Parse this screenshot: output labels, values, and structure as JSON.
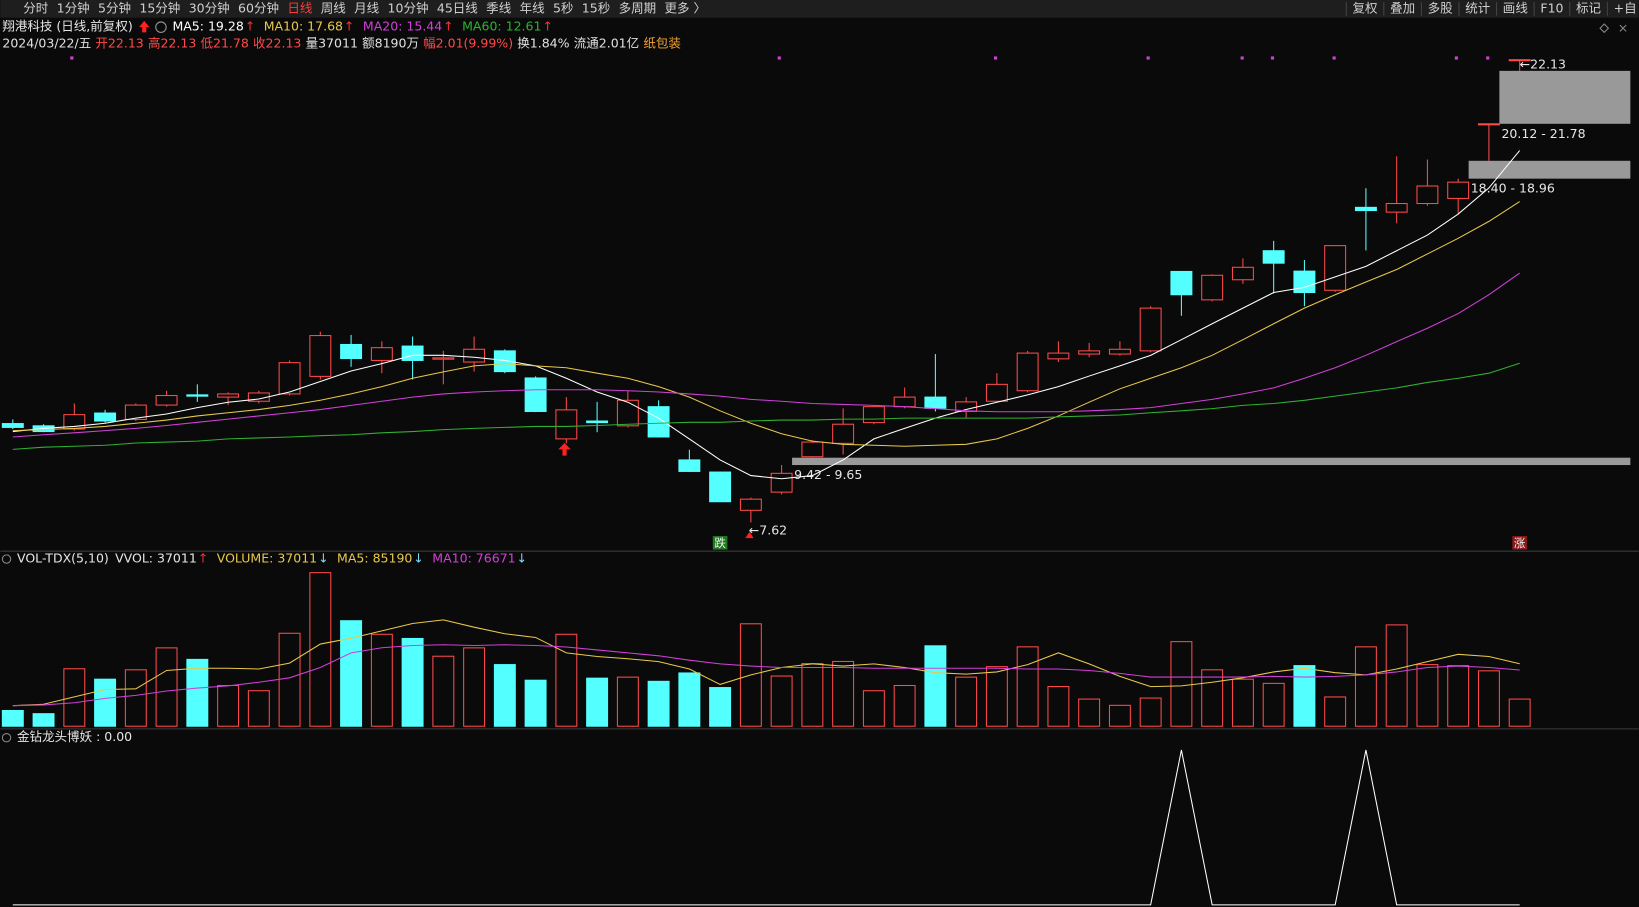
{
  "toolbar": {
    "periods": [
      "分时",
      "1分钟",
      "5分钟",
      "15分钟",
      "30分钟",
      "60分钟",
      "日线",
      "周线",
      "月线",
      "10分钟",
      "45日线",
      "季线",
      "年线",
      "5秒",
      "15秒",
      "多周期",
      "更多 〉"
    ],
    "active": "日线",
    "tools": [
      "复权",
      "叠加",
      "多股",
      "统计",
      "画线",
      "F10",
      "标记",
      "+自"
    ]
  },
  "header": {
    "stock": "翔港科技 (日线,前复权)",
    "quote": [
      {
        "text": "2024/03/22/五",
        "color": "#e0e0e0"
      },
      {
        "text": "开22.13",
        "color": "#ff4a4a"
      },
      {
        "text": "高22.13",
        "color": "#ff4a4a"
      },
      {
        "text": "低21.78",
        "color": "#ff4a4a"
      },
      {
        "text": "收22.13",
        "color": "#ff4a4a"
      },
      {
        "text": "量37011",
        "color": "#e0e0e0"
      },
      {
        "text": "额8190万",
        "color": "#e0e0e0"
      },
      {
        "text": "幅2.01(9.99%)",
        "color": "#ff4a4a"
      },
      {
        "text": "换1.84%",
        "color": "#e0e0e0"
      },
      {
        "text": "流通2.01亿",
        "color": "#e0e0e0"
      },
      {
        "text": "纸包装",
        "color": "#f0a030"
      }
    ]
  },
  "chart_data": [
    {
      "type": "candlestick",
      "up_color": "#ff4a4a",
      "down_color": "#54ffff",
      "ylim": [
        6.8,
        22.2
      ],
      "open": [
        10.72,
        10.65,
        10.55,
        11.05,
        10.85,
        11.3,
        11.62,
        11.55,
        11.42,
        11.65,
        12.2,
        13.2,
        12.7,
        13.15,
        12.74,
        12.65,
        13.0,
        12.15,
        10.24,
        10.8,
        10.65,
        11.25,
        9.58,
        9.2,
        8.0,
        8.57,
        9.68,
        10.1,
        10.75,
        11.25,
        11.55,
        11.1,
        11.42,
        11.75,
        12.75,
        12.9,
        12.9,
        13.0,
        15.49,
        14.6,
        15.23,
        16.14,
        15.5,
        14.9,
        17.5,
        17.35,
        17.62,
        17.78,
        20.12,
        22.13
      ],
      "high": [
        10.85,
        10.7,
        11.35,
        11.15,
        11.35,
        11.75,
        11.95,
        11.7,
        11.75,
        12.7,
        13.6,
        13.5,
        13.3,
        13.45,
        13.0,
        13.45,
        13.05,
        12.2,
        11.55,
        11.4,
        11.75,
        11.45,
        9.9,
        9.2,
        8.4,
        9.42,
        10.2,
        11.2,
        11.3,
        11.85,
        12.9,
        11.55,
        12.3,
        13.0,
        13.3,
        13.25,
        13.3,
        14.4,
        15.5,
        15.4,
        15.9,
        16.45,
        15.85,
        16.3,
        18.1,
        19.1,
        19.0,
        18.4,
        20.12,
        22.13
      ],
      "low": [
        10.55,
        10.45,
        10.5,
        10.75,
        10.8,
        11.25,
        11.4,
        11.3,
        11.35,
        11.6,
        12.1,
        12.5,
        12.3,
        12.1,
        11.95,
        12.35,
        12.3,
        11.08,
        10.1,
        10.45,
        10.6,
        10.3,
        9.2,
        8.27,
        7.62,
        8.5,
        9.65,
        9.75,
        10.7,
        11.2,
        11.1,
        10.9,
        11.4,
        11.7,
        12.65,
        12.8,
        12.85,
        12.95,
        14.1,
        14.55,
        15.1,
        14.8,
        14.4,
        14.85,
        16.15,
        17.0,
        17.55,
        17.3,
        18.96,
        21.78
      ],
      "close": [
        10.6,
        10.47,
        11.0,
        10.8,
        11.3,
        11.6,
        11.58,
        11.65,
        11.68,
        12.63,
        13.48,
        12.76,
        13.1,
        12.7,
        12.78,
        13.05,
        12.35,
        11.1,
        11.15,
        10.75,
        11.45,
        10.3,
        9.22,
        8.27,
        8.35,
        9.16,
        10.14,
        10.7,
        11.25,
        11.55,
        11.2,
        11.4,
        11.95,
        12.93,
        12.93,
        13.0,
        13.05,
        14.34,
        14.76,
        15.37,
        15.62,
        15.75,
        14.83,
        16.3,
        17.4,
        17.62,
        18.17,
        18.29,
        20.12,
        22.13
      ],
      "series": [
        {
          "name": "MA5: 19.28",
          "trend": "↑",
          "color": "#ffffff",
          "values": [
            10.47,
            10.57,
            10.63,
            10.73,
            10.89,
            11.02,
            11.22,
            11.39,
            11.49,
            11.71,
            12.04,
            12.37,
            12.6,
            12.86,
            12.86,
            12.8,
            12.7,
            12.53,
            12.14,
            11.71,
            11.39,
            10.89,
            10.24,
            9.58,
            9.09,
            8.99,
            9.09,
            9.58,
            10.24,
            10.57,
            10.89,
            11.16,
            11.39,
            11.62,
            11.88,
            12.21,
            12.53,
            12.86,
            13.35,
            13.85,
            14.34,
            14.83,
            14.99,
            15.32,
            15.65,
            16.14,
            16.63,
            17.29,
            18.11,
            19.28
          ]
        },
        {
          "name": "MA10: 17.68",
          "trend": "↑",
          "color": "#e8c84a",
          "values": [
            10.5,
            10.53,
            10.57,
            10.63,
            10.73,
            10.83,
            10.96,
            11.06,
            11.16,
            11.29,
            11.45,
            11.65,
            11.88,
            12.14,
            12.34,
            12.53,
            12.6,
            12.53,
            12.47,
            12.3,
            12.14,
            11.88,
            11.55,
            11.12,
            10.73,
            10.4,
            10.17,
            10.07,
            10.04,
            10.01,
            10.04,
            10.07,
            10.24,
            10.57,
            10.96,
            11.39,
            11.81,
            12.14,
            12.47,
            12.86,
            13.35,
            13.85,
            14.34,
            14.76,
            15.16,
            15.55,
            16.04,
            16.53,
            17.06,
            17.68
          ]
        },
        {
          "name": "MA20: 15.44",
          "trend": "↑",
          "color": "#d040d8",
          "values": [
            10.3,
            10.37,
            10.43,
            10.5,
            10.57,
            10.66,
            10.76,
            10.86,
            10.96,
            11.06,
            11.16,
            11.29,
            11.42,
            11.55,
            11.65,
            11.71,
            11.75,
            11.78,
            11.78,
            11.78,
            11.75,
            11.71,
            11.65,
            11.58,
            11.48,
            11.42,
            11.35,
            11.32,
            11.29,
            11.25,
            11.19,
            11.12,
            11.09,
            11.09,
            11.09,
            11.12,
            11.16,
            11.22,
            11.35,
            11.48,
            11.65,
            11.84,
            12.14,
            12.47,
            12.86,
            13.29,
            13.71,
            14.17,
            14.76,
            15.44
          ]
        },
        {
          "name": "MA60: 12.61",
          "trend": "↑",
          "color": "#30b030",
          "values": [
            9.91,
            9.98,
            10.01,
            10.04,
            10.11,
            10.14,
            10.17,
            10.24,
            10.27,
            10.3,
            10.34,
            10.37,
            10.43,
            10.47,
            10.53,
            10.57,
            10.6,
            10.63,
            10.63,
            10.66,
            10.7,
            10.73,
            10.76,
            10.76,
            10.8,
            10.83,
            10.83,
            10.86,
            10.86,
            10.89,
            10.89,
            10.89,
            10.89,
            10.89,
            10.93,
            10.96,
            10.99,
            11.06,
            11.12,
            11.19,
            11.29,
            11.35,
            11.45,
            11.58,
            11.71,
            11.84,
            12.01,
            12.14,
            12.3,
            12.61
          ]
        }
      ],
      "gaps": [
        {
          "label": "9.42 - 9.65",
          "low": 9.42,
          "high": 9.65
        },
        {
          "label": "18.40 - 18.96",
          "low": 18.4,
          "high": 18.96
        },
        {
          "label": "20.12 - 21.78",
          "low": 20.12,
          "high": 21.78
        }
      ],
      "low_label": "←7.62",
      "high_label": "←22.13",
      "signals": [
        {
          "text": "跌",
          "color": "#1f7a1f",
          "index": 23
        },
        {
          "text": "涨",
          "color": "#8a1a1a",
          "index": 49
        }
      ]
    },
    {
      "type": "bar",
      "title": "VOL-TDX(5,10)",
      "extra_label": "VVOL: 37011",
      "extra_trend": "↑",
      "ylim": [
        0,
        235000
      ],
      "series": [
        {
          "name": "VOLUME: 37011",
          "trend": "↓",
          "color": "#e8c84a",
          "values": [
            21400,
            17100,
            78300,
            64100,
            76900,
            106800,
            91100,
            55500,
            48400,
            126700,
            209300,
            143800,
            125300,
            119600,
            95400,
            106800,
            84000,
            62700,
            125300,
            65500,
            66900,
            61200,
            72600,
            52700,
            139600,
            68400,
            85400,
            88300,
            48400,
            55500,
            109600,
            66900,
            81200,
            108200,
            54100,
            37000,
            28500,
            38400,
            115300,
            76900,
            64100,
            58400,
            82600,
            39900,
            108200,
            138100,
            84000,
            82600,
            75500,
            37011
          ]
        },
        {
          "name": "MA5: 85190",
          "trend": "↓",
          "color": "#e8c84a",
          "values": [
            28000,
            30000,
            40000,
            50000,
            51000,
            76000,
            79000,
            79000,
            78000,
            86000,
            112000,
            120000,
            130000,
            140000,
            145000,
            135000,
            126000,
            121000,
            100000,
            95000,
            92000,
            88000,
            78000,
            57000,
            70000,
            80000,
            85000,
            82000,
            85000,
            80000,
            73000,
            71000,
            74000,
            84000,
            100000,
            85000,
            68000,
            54000,
            55000,
            60000,
            66000,
            74000,
            79000,
            73000,
            70000,
            78000,
            88000,
            98000,
            95000,
            85190
          ]
        },
        {
          "name": "MA10: 76671",
          "trend": "↓",
          "color": "#d040d8",
          "values": [
            28000,
            29000,
            32000,
            38000,
            42000,
            48000,
            52000,
            55000,
            60000,
            66000,
            80000,
            100000,
            107000,
            110000,
            111000,
            110000,
            111000,
            110000,
            108000,
            104000,
            100000,
            96000,
            90000,
            85000,
            82000,
            80000,
            80000,
            80000,
            79000,
            79000,
            79000,
            79000,
            79000,
            78000,
            78000,
            76000,
            72000,
            67000,
            67000,
            67000,
            67000,
            68000,
            67000,
            68000,
            70000,
            74000,
            80000,
            82000,
            80000,
            76671
          ]
        }
      ]
    },
    {
      "type": "line",
      "ylim": [
        0,
        1.12
      ],
      "series": [
        {
          "name": "金钻龙头博妖 : 0.00",
          "color": "#ffffff",
          "values": [
            0,
            0,
            0,
            0,
            0,
            0,
            0,
            0,
            0,
            0,
            0,
            0,
            0,
            0,
            0,
            0,
            0,
            0,
            0,
            0,
            0,
            0,
            0,
            0,
            0,
            0,
            0,
            0,
            0,
            0,
            0,
            0,
            0,
            0,
            0,
            0,
            0,
            0,
            1,
            0,
            0,
            0,
            0,
            0,
            1,
            0,
            0,
            0,
            0,
            0
          ]
        }
      ]
    }
  ]
}
